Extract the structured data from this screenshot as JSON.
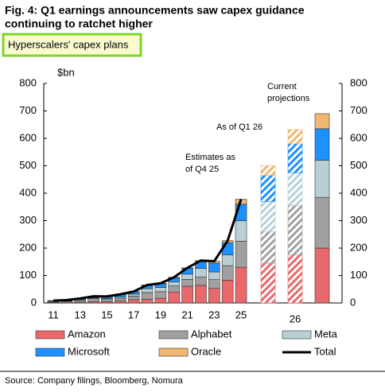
{
  "chart_data": {
    "type": "bar",
    "stacked": true,
    "title": [
      "Fig. 4: Q1 earnings announcements saw capex guidance",
      "continuing to ratchet higher"
    ],
    "subtitle": "Hyperscalers' capex plans",
    "y_unit": "$bn",
    "categories": [
      "11",
      null,
      "13",
      null,
      "15",
      null,
      "17",
      null,
      "19",
      null,
      "21",
      null,
      "23",
      null,
      "25",
      null,
      "26",
      null
    ],
    "hatched": [
      false,
      false,
      false,
      false,
      false,
      false,
      false,
      false,
      false,
      false,
      false,
      false,
      false,
      false,
      false,
      true,
      true,
      false
    ],
    "series": [
      {
        "name": "Amazon",
        "color": "#e8696b",
        "values": [
          2,
          4,
          3.5,
          5,
          4.5,
          7,
          12,
          13,
          17,
          40,
          61,
          64,
          53,
          83,
          130,
          145,
          175,
          200
        ]
      },
      {
        "name": "Alphabet",
        "color": "#a0a0a0",
        "values": [
          3,
          3,
          7,
          11,
          10,
          10,
          13,
          25,
          24,
          22,
          25,
          31,
          32,
          53,
          95,
          115,
          180,
          185
        ]
      },
      {
        "name": "Meta",
        "color": "#b8cfd6",
        "values": [
          1,
          1,
          1.4,
          2,
          2.5,
          4.5,
          7,
          14,
          15,
          15,
          19,
          31,
          28,
          39,
          75,
          110,
          120,
          135
        ]
      },
      {
        "name": "Microsoft",
        "color": "#1e90ff",
        "values": [
          2,
          2,
          4,
          5.5,
          6,
          9,
          8,
          12,
          14,
          15,
          21,
          24,
          32,
          45,
          60,
          95,
          105,
          115
        ]
      },
      {
        "name": "Oracle",
        "color": "#f0b870",
        "values": [
          0.5,
          0.6,
          0.6,
          0.6,
          1,
          1,
          1.7,
          1.5,
          1.6,
          1.6,
          2,
          4.5,
          7,
          7,
          18,
          35,
          52,
          55
        ]
      },
      {
        "name": "Total",
        "type": "line",
        "color": "#000000",
        "values": [
          8.5,
          10.6,
          16.5,
          24.1,
          24,
          31.5,
          41.7,
          65.5,
          71.6,
          93.6,
          128,
          154.5,
          152,
          227,
          378,
          null,
          null,
          null
        ]
      }
    ],
    "ylim": [
      0,
      800
    ],
    "yticks": [
      0,
      100,
      200,
      300,
      400,
      500,
      600,
      700,
      800
    ],
    "y2lim": [
      0,
      800
    ],
    "y2ticks": [
      0,
      100,
      200,
      300,
      400,
      500,
      600,
      700,
      800
    ],
    "annotations": [
      [
        "Estimates as",
        "of Q4 25"
      ],
      [
        "As of Q1 26"
      ],
      [
        "Current",
        "projections"
      ]
    ],
    "source": "Source: Company filings, Bloomberg, Nomura"
  }
}
